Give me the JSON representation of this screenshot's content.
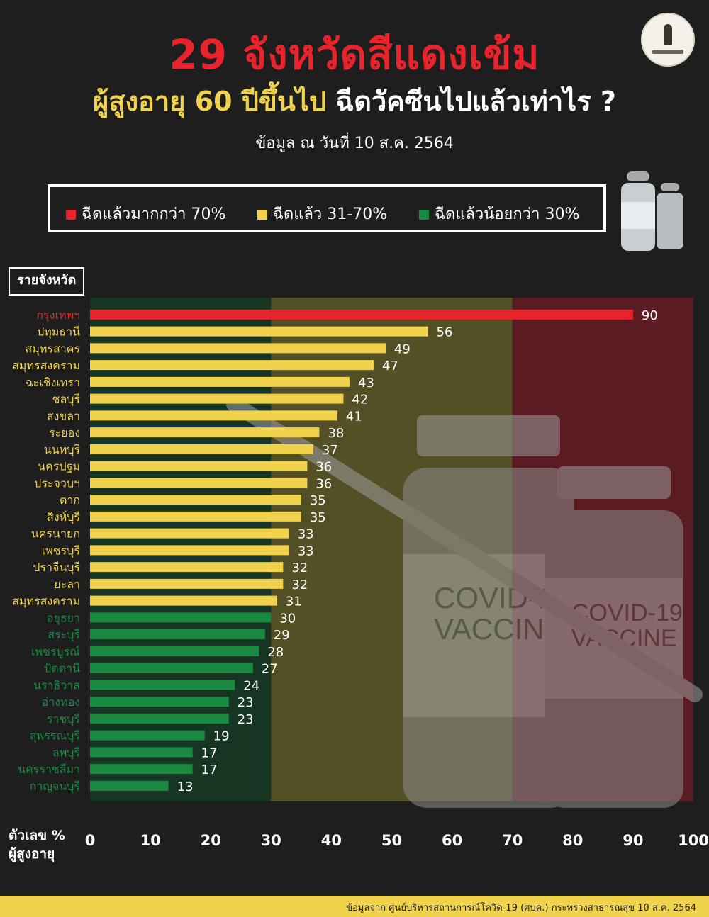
{
  "title": "29 จังหวัดสีแดงเข้ม",
  "subtitle_part1": "ผู้สูงอายุ 60 ปีขึ้นไป",
  "subtitle_part2": "ฉีดวัคซีนไปแล้วเท่าไร ?",
  "date": "ข้อมูล ณ วันที่ 10 ส.ค. 2564",
  "legend": [
    {
      "label": "ฉีดแล้วมากกว่า 70%",
      "color": "#e8232b"
    },
    {
      "label": "ฉีดแล้ว 31-70%",
      "color": "#f0d24c"
    },
    {
      "label": "ฉีดแล้วน้อยกว่า 30%",
      "color": "#1a8a43"
    }
  ],
  "section_label": "รายจังหวัด",
  "vial_text": "COVID-19 VACCINE",
  "axis_title_line1": "ตัวเลข %",
  "axis_title_line2": "ผู้สูงอายุ",
  "footer": "ข้อมูลจาก ศูนย์บริหารสถานการณ์โควิด-19 (ศบค.) กระทรวงสาธารณสุข 10 ส.ค. 2564",
  "chart_data": {
    "type": "bar",
    "orientation": "horizontal",
    "categories": [
      "กรุงเทพฯ",
      "ปทุมธานี",
      "สมุทรสาคร",
      "สมุทรสงคราม",
      "ฉะเชิงเทรา",
      "ชลบุรี",
      "สงขลา",
      "ระยอง",
      "นนทบุรี",
      "นครปฐม",
      "ประจวบฯ",
      "ตาก",
      "สิงห์บุรี",
      "นครนายก",
      "เพชรบุรี",
      "ปราจีนบุรี",
      "ยะลา",
      "สมุทรสงคราม",
      "อยุธยา",
      "สระบุรี",
      "เพชรบูรณ์",
      "ปัตตานี",
      "นราธิวาส",
      "อ่างทอง",
      "ราชบุรี",
      "สุพรรณบุรี",
      "ลพบุรี",
      "นครราชสีมา",
      "กาญจนบุรี"
    ],
    "values": [
      90,
      56,
      49,
      47,
      43,
      42,
      41,
      38,
      37,
      36,
      36,
      35,
      35,
      33,
      33,
      32,
      32,
      31,
      30,
      29,
      28,
      27,
      24,
      23,
      23,
      19,
      17,
      17,
      13
    ],
    "xlim": [
      0,
      100
    ],
    "xticks": [
      0,
      10,
      20,
      30,
      40,
      50,
      60,
      70,
      80,
      90,
      100
    ],
    "bands": [
      {
        "from": 0,
        "to": 30,
        "color": "#173523"
      },
      {
        "from": 30,
        "to": 70,
        "color": "#545026"
      },
      {
        "from": 70,
        "to": 100,
        "color": "#5a1b22"
      }
    ],
    "colors": {
      "high": "#e8232b",
      "mid": "#f0d24c",
      "low": "#1a8a43"
    }
  }
}
